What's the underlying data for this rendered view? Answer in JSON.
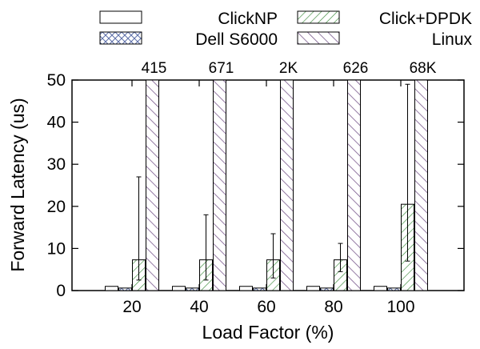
{
  "chart_data": {
    "type": "bar",
    "title": "",
    "xlabel": "Load Factor (%)",
    "ylabel": "Forward Latency (us)",
    "ylim": [
      0,
      50
    ],
    "yticks": [
      "0",
      "10",
      "20",
      "30",
      "40",
      "50"
    ],
    "categories": [
      "20",
      "40",
      "60",
      "80",
      "100"
    ],
    "grid": false,
    "legend_position": "top",
    "series": [
      {
        "name": "ClickNP",
        "values": [
          1.0,
          1.0,
          1.0,
          1.0,
          1.0
        ],
        "pattern": "plain"
      },
      {
        "name": "Dell S6000",
        "values": [
          0.6,
          0.6,
          0.6,
          0.6,
          0.6
        ],
        "pattern": "crosshatch"
      },
      {
        "name": "Click+DPDK",
        "values": [
          7.3,
          7.3,
          7.3,
          7.3,
          20.5
        ],
        "error_low": [
          2.5,
          2.5,
          3.0,
          4.5,
          7.0
        ],
        "error_high": [
          27.0,
          18.0,
          13.5,
          11.2,
          49.0
        ],
        "pattern": "diagonal-left"
      },
      {
        "name": "Linux",
        "values": [
          415,
          671,
          2000,
          626,
          68000
        ],
        "value_labels": [
          "415",
          "671",
          "2K",
          "626",
          "68K"
        ],
        "pattern": "diagonal-right",
        "clipped": true
      }
    ],
    "colors": {
      "clicknp": "#ffffff",
      "dell": "#5b6ea8",
      "clickdpdk": "#3a8a3a",
      "linux": "#7a5a8e",
      "stroke": "#000000"
    }
  }
}
